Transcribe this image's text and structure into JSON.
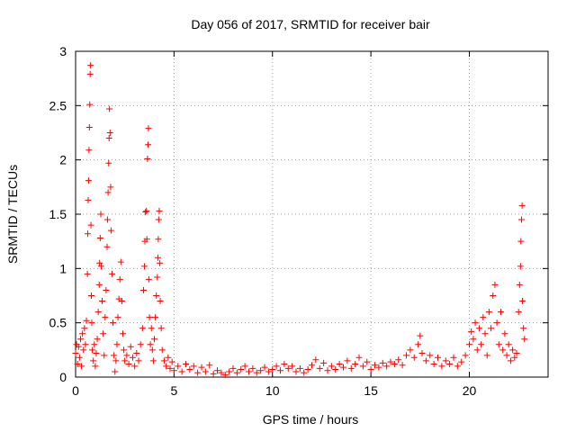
{
  "chart_data": {
    "type": "scatter",
    "title": "Day 056 of 2017, SRMTID for receiver bair",
    "xlabel": "GPS time / hours",
    "ylabel": "SRMTID / TECUs",
    "xlim": [
      0,
      24
    ],
    "ylim": [
      0,
      3
    ],
    "xticks": [
      0,
      5,
      10,
      15,
      20
    ],
    "xtick_labels": [
      "0",
      "5",
      "10",
      "15",
      "20"
    ],
    "yticks": [
      0,
      0.5,
      1,
      1.5,
      2,
      2.5,
      3
    ],
    "ytick_labels": [
      "0",
      "0.5",
      "1",
      "1.5",
      "2",
      "2.5",
      "3"
    ],
    "grid": true,
    "legend": "none",
    "marker": "plus",
    "color": "#ff0000",
    "series": [
      {
        "points": [
          [
            0.0,
            0.22
          ],
          [
            0.05,
            0.3
          ],
          [
            0.1,
            0.12
          ],
          [
            0.15,
            0.28
          ],
          [
            0.2,
            0.18
          ],
          [
            0.25,
            0.35
          ],
          [
            0.3,
            0.1
          ],
          [
            0.35,
            0.4
          ],
          [
            0.4,
            0.25
          ],
          [
            0.45,
            0.45
          ],
          [
            0.5,
            0.3
          ],
          [
            0.55,
            0.52
          ],
          [
            0.6,
            0.95
          ],
          [
            0.62,
            1.32
          ],
          [
            0.64,
            1.63
          ],
          [
            0.66,
            1.81
          ],
          [
            0.68,
            2.09
          ],
          [
            0.7,
            2.3
          ],
          [
            0.72,
            2.51
          ],
          [
            0.74,
            2.79
          ],
          [
            0.76,
            2.87
          ],
          [
            0.78,
            1.4
          ],
          [
            0.8,
            0.75
          ],
          [
            0.82,
            0.5
          ],
          [
            0.85,
            0.25
          ],
          [
            0.9,
            0.15
          ],
          [
            0.95,
            0.3
          ],
          [
            1.0,
            0.1
          ],
          [
            1.05,
            0.22
          ],
          [
            1.1,
            0.35
          ],
          [
            1.15,
            0.6
          ],
          [
            1.2,
            0.85
          ],
          [
            1.22,
            1.05
          ],
          [
            1.25,
            1.28
          ],
          [
            1.28,
            1.5
          ],
          [
            1.3,
            1.02
          ],
          [
            1.35,
            0.7
          ],
          [
            1.4,
            0.4
          ],
          [
            1.45,
            0.2
          ],
          [
            1.5,
            0.55
          ],
          [
            1.55,
            0.8
          ],
          [
            1.6,
            1.2
          ],
          [
            1.62,
            1.45
          ],
          [
            1.65,
            1.7
          ],
          [
            1.68,
            1.97
          ],
          [
            1.7,
            2.2
          ],
          [
            1.72,
            2.47
          ],
          [
            1.75,
            2.25
          ],
          [
            1.78,
            1.75
          ],
          [
            1.8,
            1.35
          ],
          [
            1.85,
            0.95
          ],
          [
            1.9,
            0.5
          ],
          [
            1.95,
            0.2
          ],
          [
            2.0,
            0.05
          ],
          [
            2.05,
            0.15
          ],
          [
            2.1,
            0.3
          ],
          [
            2.15,
            0.55
          ],
          [
            2.2,
            0.72
          ],
          [
            2.25,
            0.9
          ],
          [
            2.3,
            1.06
          ],
          [
            2.35,
            0.7
          ],
          [
            2.4,
            0.4
          ],
          [
            2.45,
            0.25
          ],
          [
            2.5,
            0.15
          ],
          [
            2.6,
            0.2
          ],
          [
            2.7,
            0.12
          ],
          [
            2.8,
            0.28
          ],
          [
            2.9,
            0.18
          ],
          [
            3.0,
            0.1
          ],
          [
            3.1,
            0.22
          ],
          [
            3.2,
            0.15
          ],
          [
            3.3,
            0.3
          ],
          [
            3.4,
            0.45
          ],
          [
            3.45,
            0.8
          ],
          [
            3.5,
            1.02
          ],
          [
            3.52,
            1.25
          ],
          [
            3.55,
            1.52
          ],
          [
            3.6,
            1.53
          ],
          [
            3.62,
            1.27
          ],
          [
            3.65,
            2.01
          ],
          [
            3.68,
            2.14
          ],
          [
            3.7,
            2.29
          ],
          [
            3.72,
            0.9
          ],
          [
            3.75,
            0.55
          ],
          [
            3.8,
            0.3
          ],
          [
            3.85,
            0.45
          ],
          [
            3.9,
            0.25
          ],
          [
            3.95,
            0.15
          ],
          [
            4.0,
            0.35
          ],
          [
            4.05,
            0.55
          ],
          [
            4.1,
            0.75
          ],
          [
            4.15,
            0.92
          ],
          [
            4.18,
            1.1
          ],
          [
            4.2,
            1.27
          ],
          [
            4.22,
            1.45
          ],
          [
            4.25,
            1.53
          ],
          [
            4.28,
            1.05
          ],
          [
            4.3,
            0.7
          ],
          [
            4.35,
            0.45
          ],
          [
            4.4,
            0.25
          ],
          [
            4.5,
            0.15
          ],
          [
            4.6,
            0.1
          ],
          [
            4.7,
            0.18
          ],
          [
            4.8,
            0.08
          ],
          [
            4.9,
            0.14
          ],
          [
            5.0,
            0.06
          ],
          [
            5.2,
            0.1
          ],
          [
            5.4,
            0.05
          ],
          [
            5.6,
            0.12
          ],
          [
            5.8,
            0.07
          ],
          [
            6.0,
            0.1
          ],
          [
            6.2,
            0.04
          ],
          [
            6.4,
            0.09
          ],
          [
            6.6,
            0.05
          ],
          [
            6.8,
            0.11
          ],
          [
            7.0,
            0.03
          ],
          [
            7.2,
            0.06
          ],
          [
            7.4,
            0.04
          ],
          [
            7.6,
            0.02
          ],
          [
            7.8,
            0.05
          ],
          [
            8.0,
            0.08
          ],
          [
            8.2,
            0.04
          ],
          [
            8.4,
            0.07
          ],
          [
            8.6,
            0.1
          ],
          [
            8.8,
            0.05
          ],
          [
            9.0,
            0.08
          ],
          [
            9.2,
            0.04
          ],
          [
            9.4,
            0.06
          ],
          [
            9.6,
            0.09
          ],
          [
            9.8,
            0.05
          ],
          [
            10.0,
            0.07
          ],
          [
            10.2,
            0.1
          ],
          [
            10.4,
            0.06
          ],
          [
            10.6,
            0.12
          ],
          [
            10.8,
            0.08
          ],
          [
            11.0,
            0.1
          ],
          [
            11.2,
            0.05
          ],
          [
            11.4,
            0.08
          ],
          [
            11.6,
            0.04
          ],
          [
            11.8,
            0.07
          ],
          [
            12.0,
            0.11
          ],
          [
            12.2,
            0.16
          ],
          [
            12.4,
            0.08
          ],
          [
            12.6,
            0.13
          ],
          [
            12.8,
            0.06
          ],
          [
            13.0,
            0.1
          ],
          [
            13.2,
            0.07
          ],
          [
            13.4,
            0.12
          ],
          [
            13.6,
            0.09
          ],
          [
            13.8,
            0.15
          ],
          [
            14.0,
            0.08
          ],
          [
            14.2,
            0.12
          ],
          [
            14.4,
            0.18
          ],
          [
            14.6,
            0.1
          ],
          [
            14.8,
            0.14
          ],
          [
            15.0,
            0.07
          ],
          [
            15.2,
            0.11
          ],
          [
            15.4,
            0.09
          ],
          [
            15.6,
            0.13
          ],
          [
            15.8,
            0.1
          ],
          [
            16.0,
            0.14
          ],
          [
            16.2,
            0.12
          ],
          [
            16.4,
            0.16
          ],
          [
            16.6,
            0.11
          ],
          [
            16.8,
            0.2
          ],
          [
            17.0,
            0.25
          ],
          [
            17.2,
            0.18
          ],
          [
            17.4,
            0.3
          ],
          [
            17.5,
            0.38
          ],
          [
            17.6,
            0.22
          ],
          [
            17.8,
            0.15
          ],
          [
            18.0,
            0.2
          ],
          [
            18.2,
            0.12
          ],
          [
            18.4,
            0.18
          ],
          [
            18.6,
            0.1
          ],
          [
            18.8,
            0.15
          ],
          [
            19.0,
            0.12
          ],
          [
            19.2,
            0.18
          ],
          [
            19.4,
            0.1
          ],
          [
            19.6,
            0.14
          ],
          [
            19.8,
            0.2
          ],
          [
            20.0,
            0.3
          ],
          [
            20.1,
            0.42
          ],
          [
            20.2,
            0.35
          ],
          [
            20.3,
            0.5
          ],
          [
            20.4,
            0.25
          ],
          [
            20.5,
            0.45
          ],
          [
            20.6,
            0.3
          ],
          [
            20.7,
            0.55
          ],
          [
            20.8,
            0.4
          ],
          [
            20.9,
            0.2
          ],
          [
            21.0,
            0.6
          ],
          [
            21.1,
            0.45
          ],
          [
            21.2,
            0.75
          ],
          [
            21.3,
            0.85
          ],
          [
            21.4,
            0.5
          ],
          [
            21.5,
            0.3
          ],
          [
            21.6,
            0.6
          ],
          [
            21.7,
            0.25
          ],
          [
            21.8,
            0.4
          ],
          [
            21.9,
            0.2
          ],
          [
            22.0,
            0.3
          ],
          [
            22.1,
            0.15
          ],
          [
            22.2,
            0.25
          ],
          [
            22.3,
            0.18
          ],
          [
            22.4,
            0.22
          ],
          [
            22.5,
            0.6
          ],
          [
            22.55,
            0.85
          ],
          [
            22.6,
            1.02
          ],
          [
            22.62,
            1.25
          ],
          [
            22.65,
            1.45
          ],
          [
            22.68,
            1.58
          ],
          [
            22.7,
            0.7
          ],
          [
            22.75,
            0.45
          ],
          [
            22.8,
            0.35
          ]
        ]
      }
    ]
  }
}
